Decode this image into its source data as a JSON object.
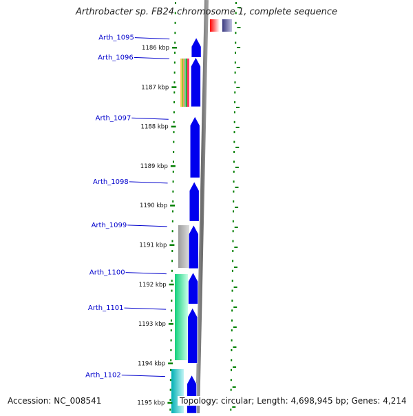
{
  "title": "Arthrobacter sp. FB24 chromosome 1, complete sequence",
  "accession": "Accession: NC_008541",
  "topology": "Topology: circular; Length: 4,698,945 bp; Genes: 4,214",
  "colors": {
    "gene_forward": "#0000ee",
    "backbone": "#808080",
    "tick": "#007f00",
    "label": "#0000cc"
  },
  "chart_data": {
    "type": "genome-map",
    "ticks": [
      {
        "kbp": 1186,
        "label": "1186 kbp"
      },
      {
        "kbp": 1187,
        "label": "1187 kbp"
      },
      {
        "kbp": 1188,
        "label": "1188 kbp"
      },
      {
        "kbp": 1189,
        "label": "1189 kbp"
      },
      {
        "kbp": 1190,
        "label": "1190 kbp"
      },
      {
        "kbp": 1191,
        "label": "1191 kbp"
      },
      {
        "kbp": 1192,
        "label": "1192 kbp"
      },
      {
        "kbp": 1193,
        "label": "1193 kbp"
      },
      {
        "kbp": 1194,
        "label": "1194 kbp"
      },
      {
        "kbp": 1195,
        "label": "1195 kbp"
      }
    ],
    "genes": [
      {
        "label": "Arth_1095",
        "start_kbp": 1185.75,
        "end_kbp": 1186.25
      },
      {
        "label": "Arth_1096",
        "start_kbp": 1186.25,
        "end_kbp": 1187.5
      },
      {
        "label": "Arth_1097",
        "start_kbp": 1187.75,
        "end_kbp": 1189.3
      },
      {
        "label": "Arth_1098",
        "start_kbp": 1189.4,
        "end_kbp": 1190.4
      },
      {
        "label": "Arth_1099",
        "start_kbp": 1190.5,
        "end_kbp": 1191.6
      },
      {
        "label": "Arth_1100",
        "start_kbp": 1191.7,
        "end_kbp": 1192.5
      },
      {
        "label": "Arth_1101",
        "start_kbp": 1192.6,
        "end_kbp": 1194.0
      },
      {
        "label": "Arth_1102",
        "start_kbp": 1194.3,
        "end_kbp": 1195.5
      }
    ]
  }
}
